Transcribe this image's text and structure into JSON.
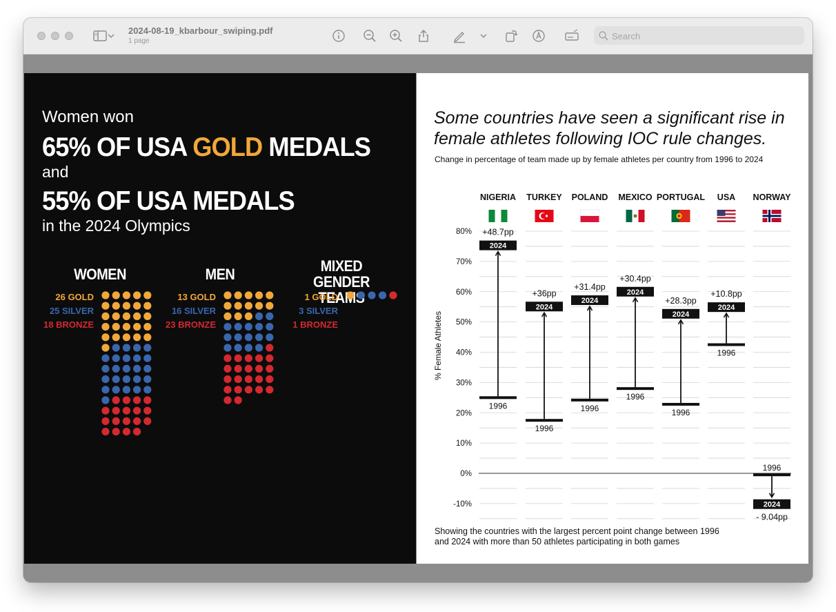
{
  "window": {
    "title": "2024-08-19_kbarbour_swiping.pdf",
    "subtitle": "1 page",
    "search_placeholder": "Search",
    "toolbar_icons": [
      "sidebar-icon",
      "chevron-down-icon",
      "info-icon",
      "zoom-out-icon",
      "zoom-in-icon",
      "share-icon",
      "markup-pen-icon",
      "chevron-down-icon",
      "rotate-icon",
      "annotate-icon",
      "form-icon",
      "search-icon"
    ]
  },
  "left": {
    "headline_1": "Women won",
    "headline_2_pre": "65% OF USA ",
    "headline_2_gold": "GOLD",
    "headline_2_post": " MEDALS",
    "headline_3": "and",
    "headline_4": "55% OF USA MEDALS",
    "headline_5": "in the 2024 Olympics",
    "colors": {
      "gold": "#f1a83a",
      "silver": "#3a66ad",
      "bronze": "#d3292f"
    },
    "groups": [
      {
        "title": "WOMEN",
        "gold_label": "26 GOLD",
        "silver_label": "25 SILVER",
        "bronze_label": "18 BRONZE",
        "gold": 26,
        "silver": 25,
        "bronze": 18
      },
      {
        "title": "MEN",
        "gold_label": "13 GOLD",
        "silver_label": "16 SILVER",
        "bronze_label": "23 BRONZE",
        "gold": 13,
        "silver": 16,
        "bronze": 23
      },
      {
        "title": "MIXED GENDER TEAMS",
        "gold_label": "1 GOLD",
        "silver_label": "3 SILVER",
        "bronze_label": "1 BRONZE",
        "gold": 1,
        "silver": 3,
        "bronze": 1
      }
    ]
  },
  "right": {
    "title_line_1": "Some countries have seen a significant rise in",
    "title_line_2": "female athletes following IOC rule changes.",
    "subtitle": "Change in percentage of team made up by female athletes per country from 1996 to 2024",
    "footnote_1": "Showing the countries with the largest percent point change between 1996",
    "footnote_2": "and 2024 with more than 50 athletes participating in both games"
  },
  "chart_data": {
    "type": "dumbbell",
    "ylabel": "% Female Athletes",
    "ylim": [
      -10,
      80
    ],
    "yticks": [
      80,
      70,
      60,
      50,
      40,
      30,
      20,
      10,
      0,
      -10
    ],
    "ytick_labels": [
      "80%",
      "70%",
      "60%",
      "50%",
      "40%",
      "30%",
      "20%",
      "10%",
      "0%",
      "-10%"
    ],
    "start_label": "1996",
    "end_label": "2024",
    "categories": [
      "NIGERIA",
      "TURKEY",
      "POLAND",
      "MEXICO",
      "PORTUGAL",
      "USA",
      "NORWAY"
    ],
    "flag_icons": [
      "nigeria-flag-icon",
      "turkey-flag-icon",
      "poland-flag-icon",
      "mexico-flag-icon",
      "portugal-flag-icon",
      "usa-flag-icon",
      "norway-flag-icon"
    ],
    "values_1996": [
      25,
      17.5,
      24.2,
      28,
      22.8,
      42.5,
      -0.5
    ],
    "values_2024": [
      73.7,
      53.5,
      55.6,
      58.4,
      51.1,
      53.3,
      -9.5
    ],
    "change_labels": [
      "+48.7pp",
      "+36pp",
      "+31.4pp",
      "+30.4pp",
      "+28.3pp",
      "+10.8pp",
      "- 9.04pp"
    ]
  }
}
